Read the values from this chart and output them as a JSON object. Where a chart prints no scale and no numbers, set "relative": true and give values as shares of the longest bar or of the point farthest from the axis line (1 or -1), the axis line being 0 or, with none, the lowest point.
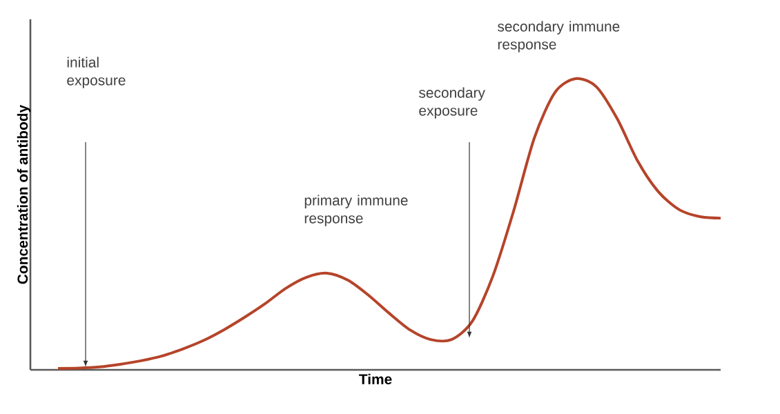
{
  "chart_data": {
    "type": "line",
    "relative": true,
    "xlabel": "Time",
    "ylabel": "Concentration of antibody",
    "categories": [
      null,
      null,
      null,
      null,
      null,
      null,
      null,
      null,
      null,
      null,
      null,
      null,
      null,
      null,
      null,
      null,
      null,
      null,
      null,
      null,
      null,
      null,
      null,
      null,
      null,
      null,
      null,
      null,
      null,
      null,
      null,
      null,
      null
    ],
    "values": [
      0.005,
      0.006,
      0.01,
      0.019,
      0.031,
      0.047,
      0.071,
      0.1,
      0.137,
      0.18,
      0.227,
      0.28,
      0.318,
      0.332,
      0.308,
      0.256,
      0.194,
      0.137,
      0.104,
      0.104,
      0.166,
      0.322,
      0.545,
      0.796,
      0.953,
      1,
      0.972,
      0.863,
      0.716,
      0.611,
      0.55,
      0.526,
      0.521
    ],
    "color": "#b5442a",
    "annotations": [
      "initial exposure",
      "primary immune response",
      "secondary exposure",
      "secondary immune response"
    ]
  }
}
